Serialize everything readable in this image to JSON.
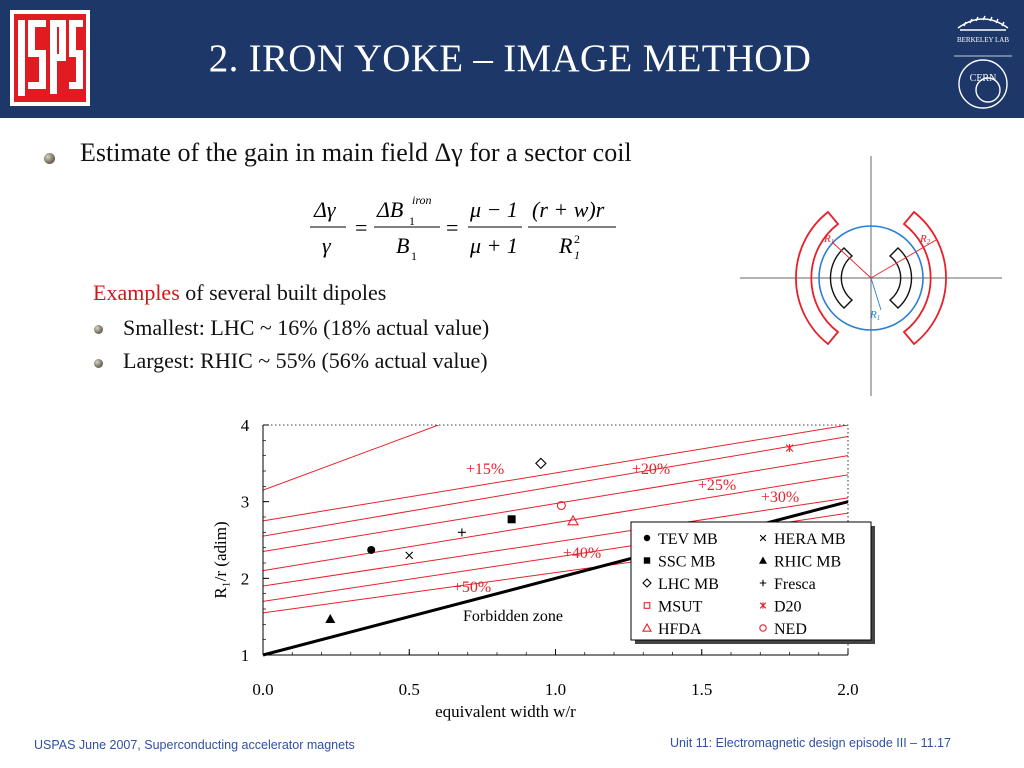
{
  "header": {
    "title": "2. IRON YOKE – IMAGE METHOD",
    "logo_left_text": "USPAS",
    "logo_right_top_text": "BERKELEY LAB",
    "logo_right_bottom_text": "CERN"
  },
  "content": {
    "bullet1": "Estimate of the gain in main field Δγ for a sector coil",
    "examples_label": "Examples",
    "examples_rest": " of several built dipoles",
    "sub1": "Smallest: LHC ~ 16% (18% actual value)",
    "sub2": "Largest: RHIC ~ 55% (56% actual value)"
  },
  "equation": {
    "dgamma": "Δγ",
    "gamma": "γ",
    "dB": "ΔB",
    "sub1": "1",
    "iron": "iron",
    "B": "B",
    "eq": "=",
    "mu_minus": "μ − 1",
    "mu_plus": "μ + 1",
    "rw_num": "(r + w)r",
    "R": "R",
    "two": "2"
  },
  "coil_diagram": {
    "label_r1_upper": "R",
    "label_r1_sub": "1",
    "label_r2": "R",
    "label_r2_sub": "2",
    "label_r1_lower": "R",
    "label_r1_lower_sub": "1"
  },
  "chart_data": {
    "type": "scatter",
    "xlabel": "equivalent width w/r",
    "ylabel": "R₁/r (adim)",
    "xlim": [
      0.0,
      2.0
    ],
    "ylim": [
      1,
      4
    ],
    "x_ticks": [
      "0.0",
      "0.5",
      "1.0",
      "1.5",
      "2.0"
    ],
    "y_ticks": [
      "1",
      "2",
      "3",
      "4"
    ],
    "forbidden_line": {
      "label": "Forbidden zone",
      "points": [
        [
          0.0,
          1.0
        ],
        [
          2.0,
          3.0
        ]
      ]
    },
    "iso_lines": [
      {
        "label": "",
        "points": [
          [
            0.0,
            3.15
          ],
          [
            0.6,
            4.0
          ]
        ]
      },
      {
        "label": "+15%",
        "points": [
          [
            0.0,
            2.75
          ],
          [
            2.0,
            4.0
          ]
        ]
      },
      {
        "label": "+20%",
        "points": [
          [
            0.0,
            2.55
          ],
          [
            2.0,
            3.85
          ]
        ]
      },
      {
        "label": "+25%",
        "points": [
          [
            0.0,
            2.35
          ],
          [
            2.0,
            3.6
          ]
        ]
      },
      {
        "label": "+30%",
        "points": [
          [
            0.0,
            2.1
          ],
          [
            2.0,
            3.35
          ]
        ]
      },
      {
        "label": "+40%",
        "points": [
          [
            0.0,
            1.9
          ],
          [
            2.0,
            3.05
          ]
        ]
      },
      {
        "label": "+50%",
        "points": [
          [
            0.0,
            1.7
          ],
          [
            2.0,
            2.85
          ]
        ]
      },
      {
        "label": "",
        "points": [
          [
            0.0,
            1.55
          ],
          [
            2.0,
            2.6
          ]
        ]
      }
    ],
    "series": [
      {
        "name": "TEV MB",
        "marker": "circle-filled",
        "color": "#000000",
        "points": [
          [
            0.37,
            2.37
          ]
        ]
      },
      {
        "name": "HERA MB",
        "marker": "x",
        "color": "#000000",
        "points": [
          [
            0.5,
            2.3
          ]
        ]
      },
      {
        "name": "SSC MB",
        "marker": "square-filled",
        "color": "#000000",
        "points": [
          [
            0.85,
            2.77
          ]
        ]
      },
      {
        "name": "RHIC MB",
        "marker": "triangle-filled",
        "color": "#000000",
        "points": [
          [
            0.23,
            1.47
          ]
        ]
      },
      {
        "name": "LHC MB",
        "marker": "diamond-open",
        "color": "#000000",
        "points": [
          [
            0.95,
            3.5
          ]
        ]
      },
      {
        "name": "Fresca",
        "marker": "plus",
        "color": "#000000",
        "points": [
          [
            0.68,
            2.6
          ]
        ]
      },
      {
        "name": "MSUT",
        "marker": "square-open",
        "color": "#e8202a",
        "points": []
      },
      {
        "name": "D20",
        "marker": "star",
        "color": "#e8202a",
        "points": [
          [
            1.8,
            3.7
          ]
        ]
      },
      {
        "name": "HFDA",
        "marker": "triangle-open",
        "color": "#e8202a",
        "points": [
          [
            1.06,
            2.75
          ]
        ]
      },
      {
        "name": "NED",
        "marker": "circle-open",
        "color": "#e8202a",
        "points": [
          [
            1.02,
            2.95
          ]
        ]
      }
    ],
    "legend_placement": "bottom-right",
    "grid": false
  },
  "footer": {
    "left": "USPAS June  2007,  Superconducting accelerator magnets",
    "right": "Unit 11: Electromagnetic design episode III – 11.17"
  },
  "colors": {
    "header_bg": "#1c3768",
    "accent_red": "#e8202a",
    "footer_blue": "#2f4fa8",
    "circle_blue": "#2a7fd4"
  }
}
